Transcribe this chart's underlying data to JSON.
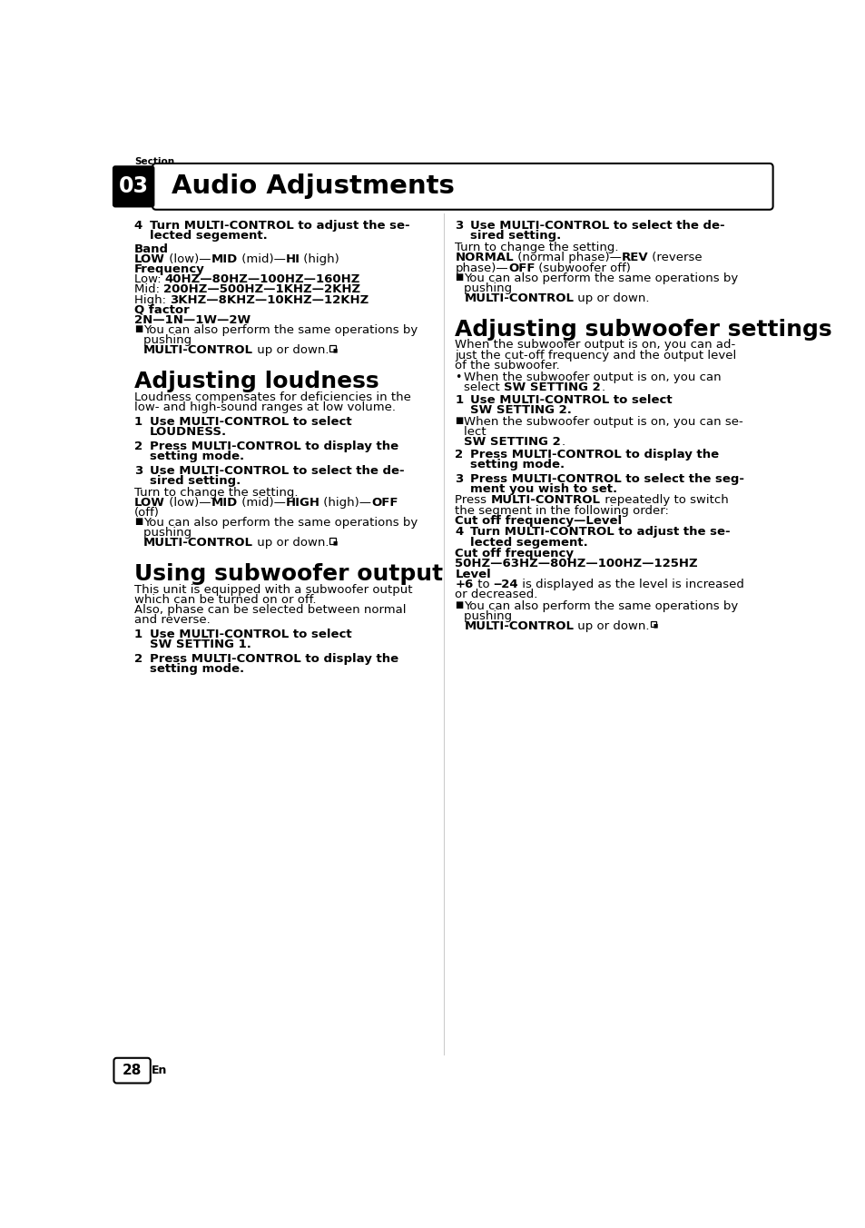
{
  "page_bg": "#ffffff",
  "section_num": "03",
  "section_label": "Section",
  "header_title": "Audio Adjustments",
  "page_num": "28",
  "page_lang": "En"
}
